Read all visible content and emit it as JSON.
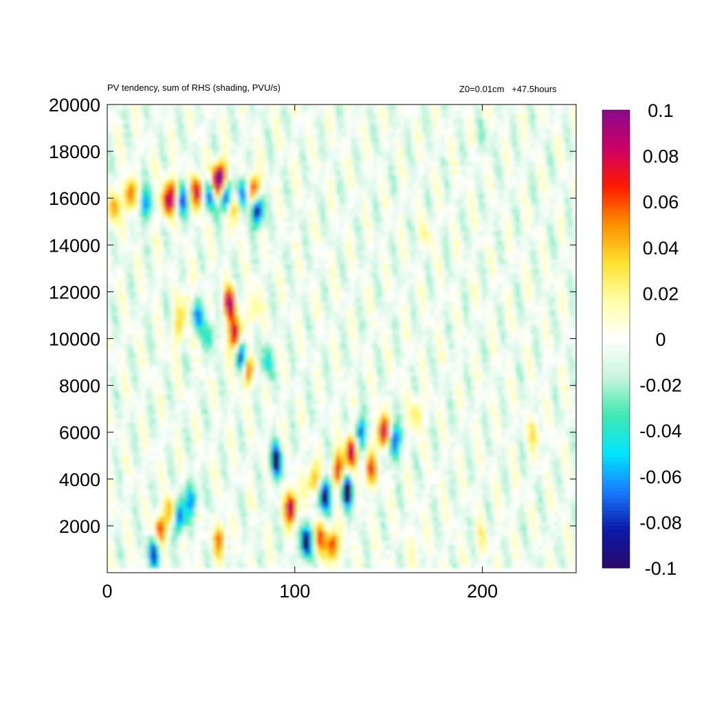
{
  "chart_data": {
    "type": "heatmap",
    "title": "PV tendency, sum of RHS (shading, PVU/s)",
    "subtitle": "Z0=0.01cm   +47.5hours",
    "xlabel": "",
    "ylabel": "",
    "xlim": [
      0,
      250
    ],
    "ylim": [
      0,
      20000
    ],
    "x_ticks": [
      0,
      100,
      200
    ],
    "y_ticks": [
      2000,
      4000,
      6000,
      8000,
      10000,
      12000,
      14000,
      16000,
      18000,
      20000
    ],
    "colorbar": {
      "range": [
        -0.1,
        0.1
      ],
      "ticks": [
        0.1,
        0.08,
        0.06,
        0.04,
        0.02,
        0,
        -0.02,
        -0.04,
        -0.06,
        -0.08,
        -0.1
      ],
      "colors": [
        "#2a0a6a",
        "#0a1aa8",
        "#1a7aff",
        "#00e6ff",
        "#40e8b0",
        "#c8f5dc",
        "#ffffff",
        "#ffffa8",
        "#ffe030",
        "#ff9000",
        "#ff1a00",
        "#cc0066",
        "#8a0a8a"
      ]
    },
    "features": [
      {
        "x": 3,
        "y": 15600,
        "value": 0.05
      },
      {
        "x": 12,
        "y": 16100,
        "value": 0.07
      },
      {
        "x": 32,
        "y": 15900,
        "value": 0.08
      },
      {
        "x": 36,
        "y": 16300,
        "value": 0.05
      },
      {
        "x": 40,
        "y": 16000,
        "value": -0.07
      },
      {
        "x": 48,
        "y": 16300,
        "value": 0.09
      },
      {
        "x": 55,
        "y": 16200,
        "value": -0.09
      },
      {
        "x": 58,
        "y": 16600,
        "value": 0.1
      },
      {
        "x": 61,
        "y": 16900,
        "value": 0.09
      },
      {
        "x": 63,
        "y": 16100,
        "value": -0.1
      },
      {
        "x": 68,
        "y": 15700,
        "value": 0.07
      },
      {
        "x": 72,
        "y": 16200,
        "value": -0.09
      },
      {
        "x": 78,
        "y": 16400,
        "value": 0.09
      },
      {
        "x": 80,
        "y": 15500,
        "value": -0.1
      },
      {
        "x": 20,
        "y": 15700,
        "value": -0.06
      },
      {
        "x": 42,
        "y": 11500,
        "value": 0.03
      },
      {
        "x": 38,
        "y": 10500,
        "value": 0.035
      },
      {
        "x": 48,
        "y": 11000,
        "value": -0.06
      },
      {
        "x": 55,
        "y": 10200,
        "value": -0.04
      },
      {
        "x": 65,
        "y": 11500,
        "value": 0.09
      },
      {
        "x": 68,
        "y": 10200,
        "value": 0.1
      },
      {
        "x": 72,
        "y": 9300,
        "value": -0.08
      },
      {
        "x": 75,
        "y": 8700,
        "value": 0.07
      },
      {
        "x": 78,
        "y": 11200,
        "value": 0.035
      },
      {
        "x": 85,
        "y": 9000,
        "value": -0.04
      },
      {
        "x": 90,
        "y": 4800,
        "value": -0.09
      },
      {
        "x": 98,
        "y": 2800,
        "value": 0.1
      },
      {
        "x": 106,
        "y": 1300,
        "value": -0.1
      },
      {
        "x": 110,
        "y": 4000,
        "value": 0.06
      },
      {
        "x": 116,
        "y": 3300,
        "value": -0.1
      },
      {
        "x": 123,
        "y": 4400,
        "value": 0.08
      },
      {
        "x": 128,
        "y": 3500,
        "value": -0.1
      },
      {
        "x": 130,
        "y": 5200,
        "value": 0.1
      },
      {
        "x": 135,
        "y": 6000,
        "value": -0.07
      },
      {
        "x": 140,
        "y": 4400,
        "value": 0.07
      },
      {
        "x": 147,
        "y": 6000,
        "value": 0.1
      },
      {
        "x": 153,
        "y": 5600,
        "value": -0.08
      },
      {
        "x": 120,
        "y": 1200,
        "value": 0.08
      },
      {
        "x": 113,
        "y": 1500,
        "value": 0.06
      },
      {
        "x": 38,
        "y": 2400,
        "value": -0.09
      },
      {
        "x": 28,
        "y": 1800,
        "value": 0.07
      },
      {
        "x": 34,
        "y": 2600,
        "value": 0.06
      },
      {
        "x": 45,
        "y": 3200,
        "value": -0.06
      },
      {
        "x": 25,
        "y": 900,
        "value": -0.08
      },
      {
        "x": 60,
        "y": 1400,
        "value": 0.06
      },
      {
        "x": 228,
        "y": 6000,
        "value": 0.035
      },
      {
        "x": 165,
        "y": 6800,
        "value": 0.035
      },
      {
        "x": 200,
        "y": 1500,
        "value": 0.02
      },
      {
        "x": 165,
        "y": 1200,
        "value": 0.02
      },
      {
        "x": 170,
        "y": 14500,
        "value": 0.02
      },
      {
        "x": 200,
        "y": 18500,
        "value": -0.015
      }
    ]
  }
}
